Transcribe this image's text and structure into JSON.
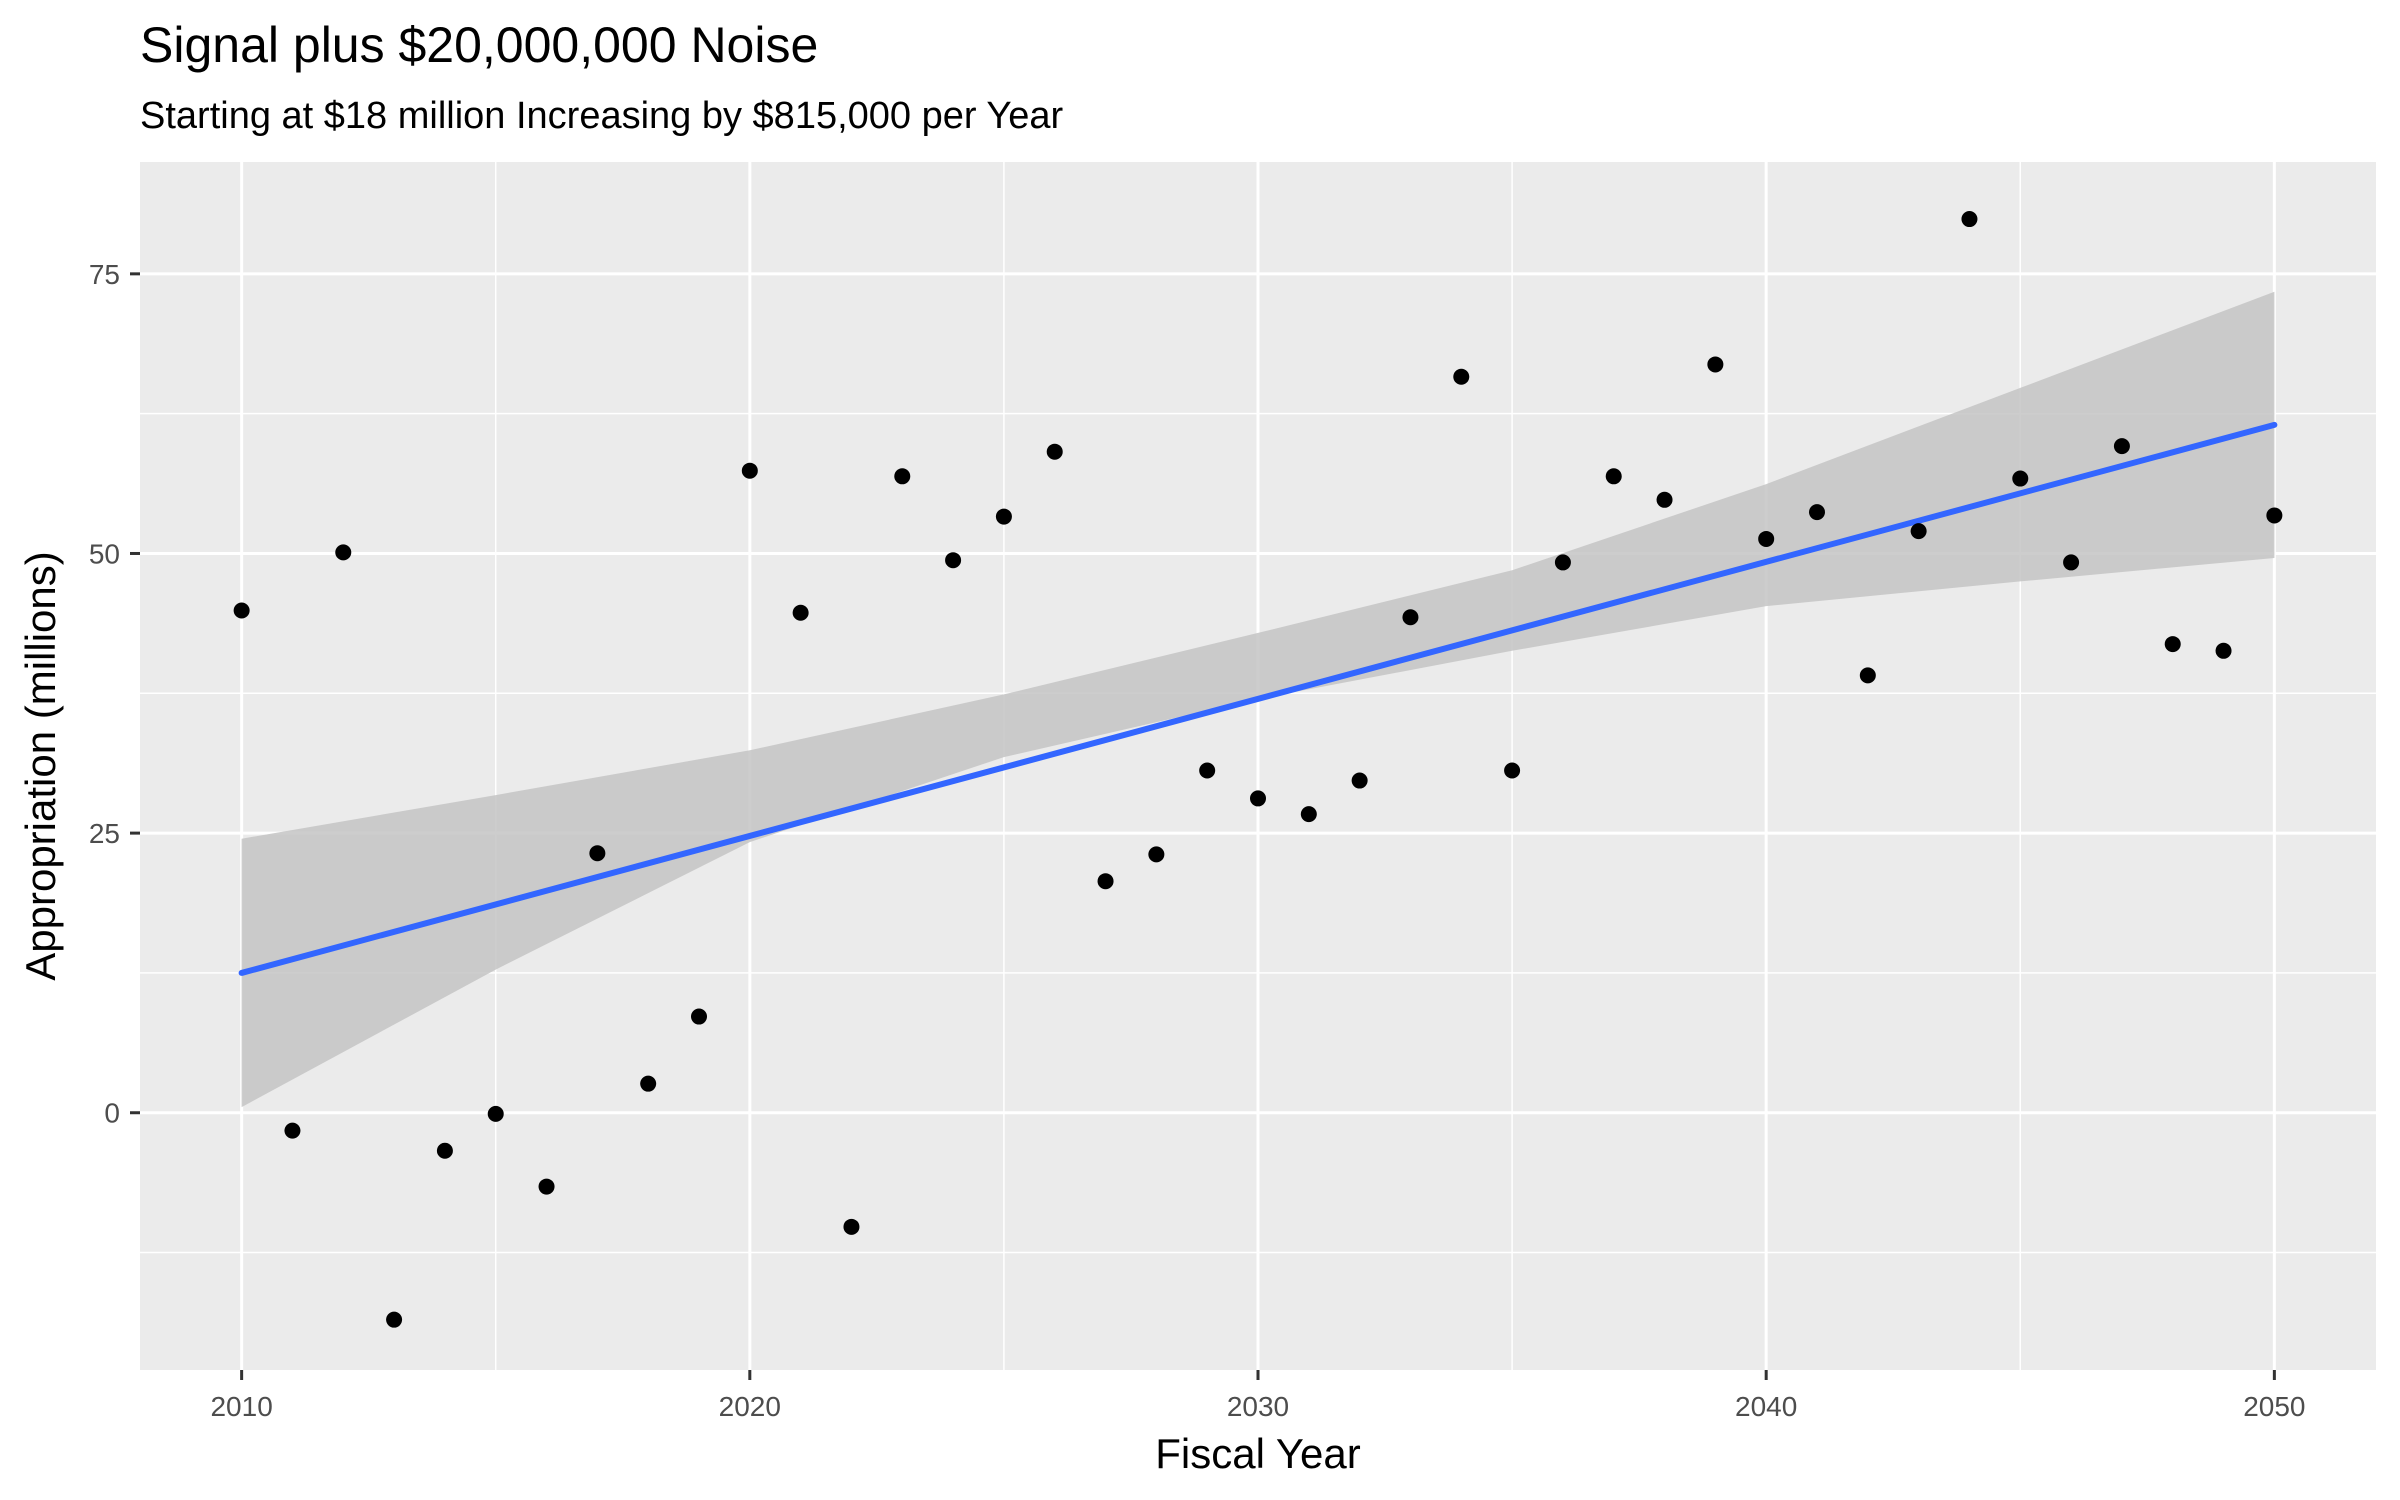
{
  "chart_data": {
    "type": "scatter",
    "title": "Signal plus $20,000,000 Noise",
    "subtitle": "Starting at $18 million Increasing by $815,000 per Year",
    "xlabel": "Fiscal Year",
    "ylabel": "Appropriation (millions)",
    "xlim": [
      2008,
      2052
    ],
    "ylim": [
      -23,
      85
    ],
    "x_ticks": [
      2010,
      2020,
      2030,
      2040,
      2050
    ],
    "y_ticks": [
      0,
      25,
      50,
      75
    ],
    "x_minor_ticks": [
      2015,
      2025,
      2035,
      2045
    ],
    "y_minor_ticks": [
      -12.5,
      12.5,
      37.5,
      62.5
    ],
    "grid": true,
    "legend": "none",
    "series": [
      {
        "x": [
          2010,
          2011,
          2012,
          2013,
          2014,
          2015,
          2016,
          2017,
          2018,
          2019,
          2020,
          2021,
          2022,
          2023,
          2024,
          2025,
          2026,
          2027,
          2028,
          2029,
          2030,
          2031,
          2032,
          2033,
          2034,
          2035,
          2036,
          2037,
          2038,
          2039,
          2040,
          2041,
          2042,
          2043,
          2044,
          2045,
          2046,
          2047,
          2048,
          2049,
          2050
        ],
        "values": [
          44.9,
          -1.6,
          50.1,
          -18.5,
          -3.4,
          -0.1,
          -6.6,
          23.2,
          2.6,
          8.6,
          57.4,
          44.7,
          -10.2,
          56.9,
          49.4,
          53.3,
          59.1,
          20.7,
          23.1,
          30.6,
          28.1,
          26.7,
          29.7,
          44.3,
          65.8,
          30.6,
          49.2,
          56.9,
          54.8,
          66.9,
          51.3,
          53.7,
          39.1,
          52.0,
          79.9,
          56.7,
          49.2,
          59.6,
          41.9,
          41.3,
          53.4
        ]
      }
    ],
    "trend_line": {
      "x": [
        2010,
        2050
      ],
      "y": [
        12.5,
        61.5
      ]
    },
    "confidence_band": {
      "x": [
        2010,
        2015,
        2020,
        2025,
        2030,
        2035,
        2040,
        2045,
        2050
      ],
      "lower": [
        0.5,
        12.8,
        24.2,
        31.8,
        37.0,
        41.3,
        45.3,
        47.5,
        49.6
      ],
      "upper": [
        24.5,
        28.4,
        32.4,
        37.4,
        42.9,
        48.5,
        56.2,
        64.8,
        73.4
      ]
    },
    "colors": {
      "panel": "#ebebeb",
      "grid": "#ffffff",
      "points": "#000000",
      "trend": "#3366ff",
      "band": "#c4c4c4"
    }
  }
}
